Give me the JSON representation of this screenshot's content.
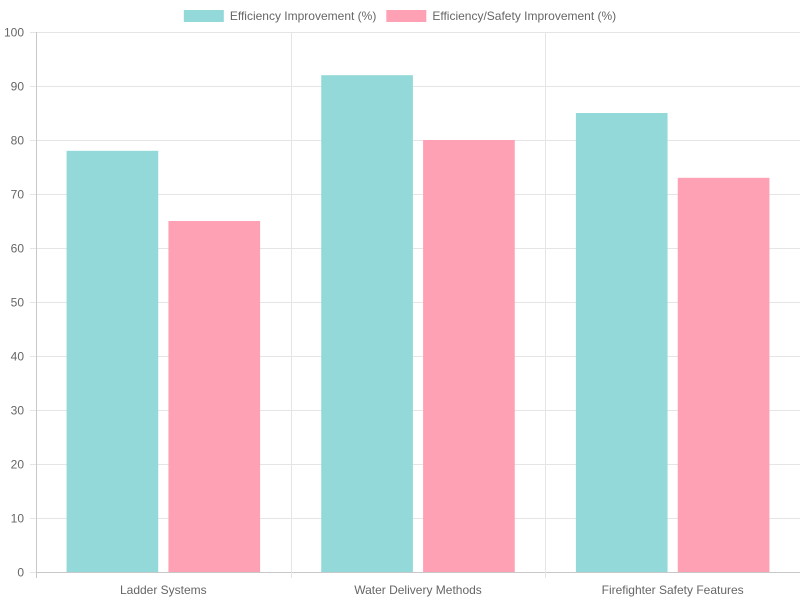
{
  "chart_data": {
    "type": "bar",
    "title": "",
    "xlabel": "",
    "ylabel": "",
    "categories": [
      "Ladder Systems",
      "Water Delivery Methods",
      "Firefighter Safety Features"
    ],
    "series": [
      {
        "name": "Efficiency Improvement (%)",
        "values": [
          78,
          92,
          85
        ],
        "color": "#93d9d9",
        "border_color": "#4bc0c0"
      },
      {
        "name": "Efficiency/Safety Improvement (%)",
        "values": [
          65,
          80,
          73
        ],
        "color": "#ffa1b5",
        "border_color": "#ff6384"
      }
    ],
    "ylim": [
      0,
      100
    ],
    "yticks": [
      0,
      10,
      20,
      30,
      40,
      50,
      60,
      70,
      80,
      90,
      100
    ],
    "grid": true,
    "legend_position": "top-center"
  },
  "colors": {
    "grid": "#e5e5e5",
    "axis": "#c8c8c8",
    "text": "#666666"
  }
}
